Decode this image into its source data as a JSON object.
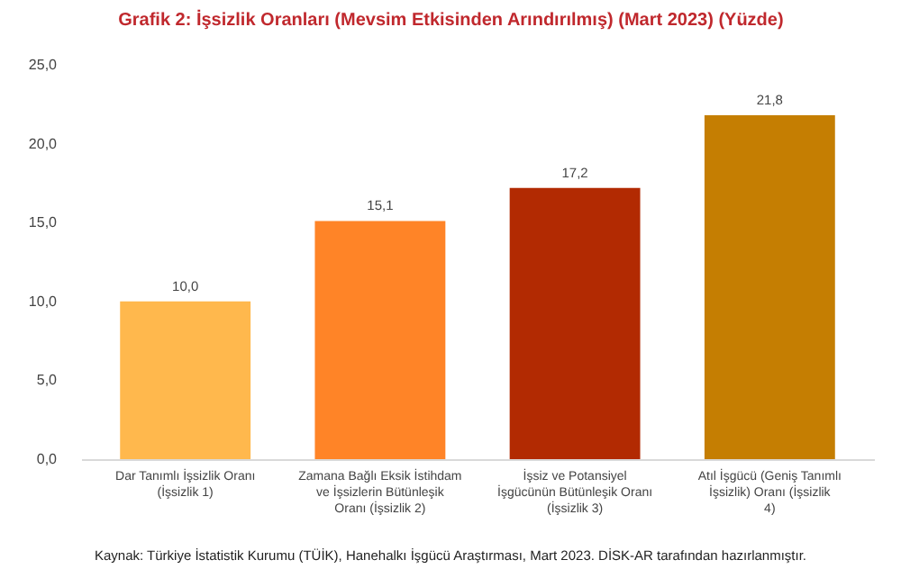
{
  "chart_data": {
    "type": "bar",
    "title": "Grafik 2: İşsizlik Oranları (Mevsim Etkisinden Arındırılmış) (Mart 2023) (Yüzde)",
    "categories": [
      "Dar Tanımlı İşsizlik Oranı (İşsizlik 1)",
      "Zamana Bağlı Eksik İstihdam ve İşsizlerin Bütünleşik Oranı (İşsizlik 2)",
      "İşsiz ve Potansiyel İşgücünün Bütünleşik Oranı (İşsizlik 3)",
      "Atıl İşgücü (Geniş Tanımlı İşsizlik) Oranı (İşsizlik 4)"
    ],
    "values": [
      10.0,
      15.1,
      17.2,
      21.8
    ],
    "value_labels": [
      "10,0",
      "15,1",
      "17,2",
      "21,8"
    ],
    "colors": [
      "#ffb84d",
      "#ff8427",
      "#b22a02",
      "#c57e02"
    ],
    "ylim": [
      0,
      25
    ],
    "yticks": [
      {
        "value": 0,
        "label": "0,0"
      },
      {
        "value": 5,
        "label": "5,0"
      },
      {
        "value": 10,
        "label": "10,0"
      },
      {
        "value": 15,
        "label": "15,0"
      },
      {
        "value": 20,
        "label": "20,0"
      },
      {
        "value": 25,
        "label": "25,0"
      }
    ],
    "grid": false,
    "legend": false,
    "annotations": [
      "Kaynak: Türkiye İstatistik Kurumu (TÜİK), Hanehalkı İşgücü Araştırması, Mart 2023. DİSK-AR tarafından hazırlanmıştır."
    ]
  }
}
